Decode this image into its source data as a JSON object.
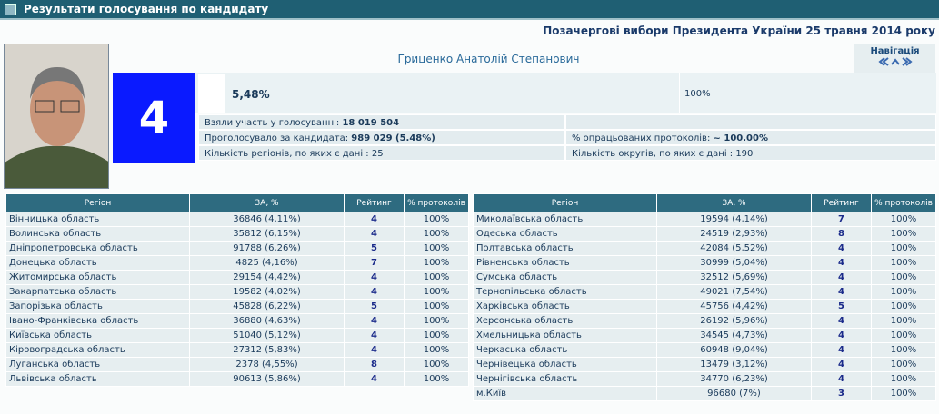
{
  "header": {
    "title": "Результати голосування по кандидату"
  },
  "election": "Позачергові вибори Президента України 25 травня 2014 року",
  "candidate": {
    "name": "Гриценко Анатолій Степанович",
    "number": "4",
    "percent": "5,48%",
    "processed": "100%"
  },
  "navigation": "Навігація",
  "stats": {
    "turnout_label": "Взяли участь у голосуванні:",
    "turnout_value": "18 019 504",
    "votes_label": "Проголосувало за кандидата:",
    "votes_value": "989 029 (5.48%)",
    "protocols_label": "% опрацьованих протоколів:",
    "protocols_value": "~ 100.00%",
    "regions": "Кількість регіонів, по яких є дані : 25",
    "districts": "Кількість округів, по яких є дані : 190"
  },
  "left_table": {
    "header": [
      "Регіон",
      "ЗА, %",
      "Рейтинг",
      "% протоколів"
    ],
    "rows": [
      [
        "Вінницька область",
        "36846 (4,11%)",
        "4",
        "100%"
      ],
      [
        "Волинська область",
        "35812 (6,15%)",
        "4",
        "100%"
      ],
      [
        "Дніпропетровська область",
        "91788 (6,26%)",
        "5",
        "100%"
      ],
      [
        "Донецька область",
        "4825 (4,16%)",
        "7",
        "100%"
      ],
      [
        "Житомирська область",
        "29154 (4,42%)",
        "4",
        "100%"
      ],
      [
        "Закарпатська область",
        "19582 (4,02%)",
        "4",
        "100%"
      ],
      [
        "Запорізька область",
        "45828 (6,22%)",
        "5",
        "100%"
      ],
      [
        "Івано-Франківська область",
        "36880 (4,63%)",
        "4",
        "100%"
      ],
      [
        "Київська область",
        "51040 (5,12%)",
        "4",
        "100%"
      ],
      [
        "Кіровоградська область",
        "27312 (5,83%)",
        "4",
        "100%"
      ],
      [
        "Луганська область",
        "2378 (4,55%)",
        "8",
        "100%"
      ],
      [
        "Львівська область",
        "90613 (5,86%)",
        "4",
        "100%"
      ]
    ]
  },
  "right_table": {
    "header": [
      "Регіон",
      "ЗА, %",
      "Рейтинг",
      "% протоколів"
    ],
    "rows": [
      [
        "Миколаївська область",
        "19594 (4,14%)",
        "7",
        "100%"
      ],
      [
        "Одеська область",
        "24519 (2,93%)",
        "8",
        "100%"
      ],
      [
        "Полтавська область",
        "42084 (5,52%)",
        "4",
        "100%"
      ],
      [
        "Рівненська область",
        "30999 (5,04%)",
        "4",
        "100%"
      ],
      [
        "Сумська область",
        "32512 (5,69%)",
        "4",
        "100%"
      ],
      [
        "Тернопільська область",
        "49021 (7,54%)",
        "4",
        "100%"
      ],
      [
        "Харківська область",
        "45756 (4,42%)",
        "5",
        "100%"
      ],
      [
        "Херсонська область",
        "26192 (5,96%)",
        "4",
        "100%"
      ],
      [
        "Хмельницька область",
        "34545 (4,73%)",
        "4",
        "100%"
      ],
      [
        "Черкаська область",
        "60948 (9,04%)",
        "4",
        "100%"
      ],
      [
        "Чернівецька область",
        "13479 (3,12%)",
        "4",
        "100%"
      ],
      [
        "Чернігівська область",
        "34770 (6,23%)",
        "4",
        "100%"
      ],
      [
        "м.Київ",
        "96680 (7%)",
        "3",
        "100%"
      ]
    ]
  }
}
